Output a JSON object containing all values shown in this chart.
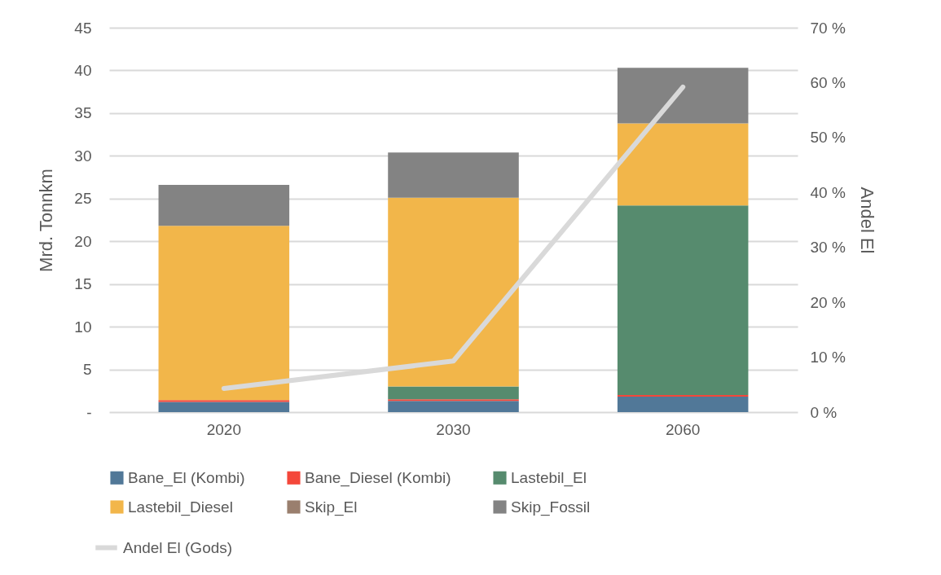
{
  "chart_data": {
    "type": "bar",
    "stacked": true,
    "categories": [
      "2020",
      "2030",
      "2060"
    ],
    "series": [
      {
        "name": "Bane_El (Kombi)",
        "color": "#517898",
        "values": [
          1.2,
          1.3,
          1.8
        ]
      },
      {
        "name": "Bane_Diesel (Kombi)",
        "color": "#f4473a",
        "values": [
          0.2,
          0.2,
          0.2
        ]
      },
      {
        "name": "Lastebil_El",
        "color": "#568b6e",
        "values": [
          0,
          1.5,
          22.2
        ]
      },
      {
        "name": "Lastebil_Diesel",
        "color": "#f2b64a",
        "values": [
          20.4,
          22.1,
          9.6
        ]
      },
      {
        "name": "Skip_El",
        "color": "#9a7f6e",
        "values": [
          0,
          0,
          0
        ]
      },
      {
        "name": "Skip_Fossil",
        "color": "#838383",
        "values": [
          4.8,
          5.3,
          6.5
        ]
      },
      {
        "name": "Andel El (Gods)",
        "type": "line",
        "axis": "y2",
        "color": "#d9d9d9",
        "values": [
          4.3,
          9.3,
          59.2
        ]
      }
    ],
    "ylabel": "Mrd. Tonnkm",
    "y2label": "Andel El",
    "ylim": [
      0,
      45
    ],
    "yticks": [
      {
        "value": 0,
        "label": "-"
      },
      5,
      10,
      15,
      20,
      25,
      30,
      35,
      40,
      45
    ],
    "y2lim": [
      0,
      70
    ],
    "y2ticks": [
      {
        "value": 0,
        "label": "0 %"
      },
      {
        "value": 10,
        "label": "10 %"
      },
      {
        "value": 20,
        "label": "20 %"
      },
      {
        "value": 30,
        "label": "30 %"
      },
      {
        "value": 40,
        "label": "40 %"
      },
      {
        "value": 50,
        "label": "50 %"
      },
      {
        "value": 60,
        "label": "60 %"
      },
      {
        "value": 70,
        "label": "70 %"
      }
    ],
    "grid": "y",
    "legend": "bottom"
  }
}
